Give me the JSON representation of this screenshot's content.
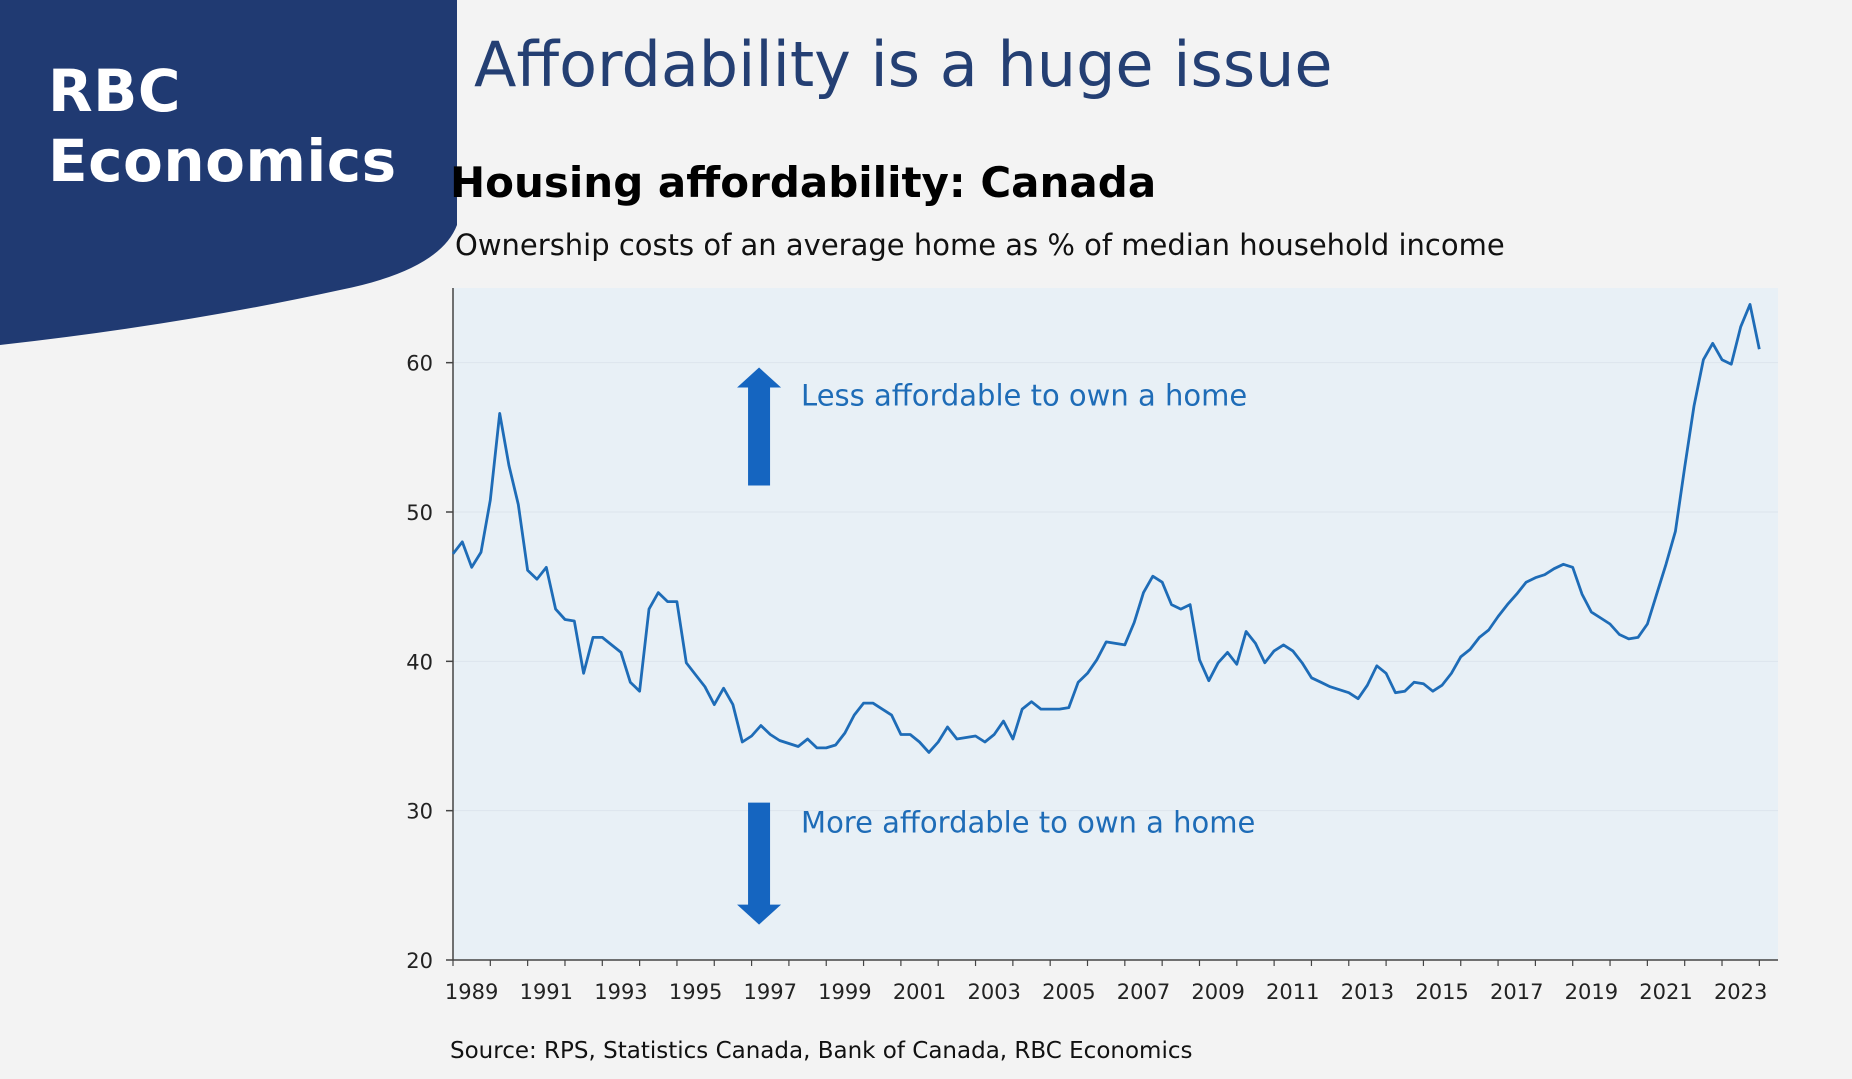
{
  "logo": {
    "line1": "RBC",
    "line2": "Economics"
  },
  "slide_title": "Affordability is a huge issue",
  "source": "Source: RPS, Statistics Canada, Bank of Canada, RBC Economics",
  "colors": {
    "logo_bg": "#203a72",
    "plot_bg": "#e8f0f6",
    "line": "#1e6cb7",
    "arrow": "#1565c0",
    "title": "#243f73"
  },
  "chart_data": {
    "type": "line",
    "title": "Housing affordability: Canada",
    "subtitle": "Ownership costs of an average home as % of median household income",
    "xlabel": "",
    "ylabel": "",
    "xlim": [
      1989,
      2024.5
    ],
    "ylim": [
      20,
      65
    ],
    "yticks": [
      20,
      30,
      40,
      50,
      60
    ],
    "xticks": [
      "1989",
      "1991",
      "1993",
      "1995",
      "1997",
      "1999",
      "2001",
      "2003",
      "2005",
      "2007",
      "2009",
      "2011",
      "2013",
      "2015",
      "2017",
      "2019",
      "2021",
      "2023"
    ],
    "annotations": [
      {
        "text": "Less affordable to own a home",
        "direction": "up",
        "anchor_x": 1997.2,
        "anchor_y": 57.8
      },
      {
        "text": "More affordable to own a home",
        "direction": "down",
        "anchor_x": 1997.2,
        "anchor_y": 29.2
      }
    ],
    "series": [
      {
        "name": "Housing affordability: Canada",
        "x": [
          1989.0,
          1989.25,
          1989.5,
          1989.75,
          1990.0,
          1990.25,
          1990.5,
          1990.75,
          1991.0,
          1991.25,
          1991.5,
          1991.75,
          1992.0,
          1992.25,
          1992.5,
          1992.75,
          1993.0,
          1993.25,
          1993.5,
          1993.75,
          1994.0,
          1994.25,
          1994.5,
          1994.75,
          1995.0,
          1995.25,
          1995.5,
          1995.75,
          1996.0,
          1996.25,
          1996.5,
          1996.75,
          1997.0,
          1997.25,
          1997.5,
          1997.75,
          1998.0,
          1998.25,
          1998.5,
          1998.75,
          1999.0,
          1999.25,
          1999.5,
          1999.75,
          2000.0,
          2000.25,
          2000.5,
          2000.75,
          2001.0,
          2001.25,
          2001.5,
          2001.75,
          2002.0,
          2002.25,
          2002.5,
          2002.75,
          2003.0,
          2003.25,
          2003.5,
          2003.75,
          2004.0,
          2004.25,
          2004.5,
          2004.75,
          2005.0,
          2005.25,
          2005.5,
          2005.75,
          2006.0,
          2006.25,
          2006.5,
          2006.75,
          2007.0,
          2007.25,
          2007.5,
          2007.75,
          2008.0,
          2008.25,
          2008.5,
          2008.75,
          2009.0,
          2009.25,
          2009.5,
          2009.75,
          2010.0,
          2010.25,
          2010.5,
          2010.75,
          2011.0,
          2011.25,
          2011.5,
          2011.75,
          2012.0,
          2012.25,
          2012.5,
          2012.75,
          2013.0,
          2013.25,
          2013.5,
          2013.75,
          2014.0,
          2014.25,
          2014.5,
          2014.75,
          2015.0,
          2015.25,
          2015.5,
          2015.75,
          2016.0,
          2016.25,
          2016.5,
          2016.75,
          2017.0,
          2017.25,
          2017.5,
          2017.75,
          2018.0,
          2018.25,
          2018.5,
          2018.75,
          2019.0,
          2019.25,
          2019.5,
          2019.75,
          2020.0,
          2020.25,
          2020.5,
          2020.75,
          2021.0,
          2021.25,
          2021.5,
          2021.75,
          2022.0,
          2022.25,
          2022.5,
          2022.75,
          2023.0,
          2023.25,
          2023.5,
          2023.75,
          2024.0
        ],
        "values": [
          47.2,
          48.0,
          46.3,
          47.3,
          50.8,
          56.6,
          53.1,
          50.5,
          46.1,
          45.5,
          46.3,
          43.5,
          42.8,
          42.7,
          39.2,
          41.6,
          41.6,
          41.1,
          40.6,
          38.6,
          38.0,
          43.5,
          44.6,
          44.0,
          44.0,
          39.9,
          39.1,
          38.3,
          37.1,
          38.2,
          37.1,
          34.6,
          35.0,
          35.7,
          35.1,
          34.7,
          34.5,
          34.3,
          34.8,
          34.2,
          34.2,
          34.4,
          35.2,
          36.4,
          37.2,
          37.2,
          36.8,
          36.4,
          35.1,
          35.1,
          34.6,
          33.9,
          34.6,
          35.6,
          34.8,
          34.9,
          35.0,
          34.6,
          35.1,
          36.0,
          34.8,
          36.8,
          37.3,
          36.8,
          36.8,
          36.8,
          36.9,
          38.6,
          39.2,
          40.1,
          41.3,
          41.2,
          41.1,
          42.6,
          44.6,
          45.7,
          45.3,
          43.8,
          43.5,
          43.8,
          40.1,
          38.7,
          39.9,
          40.6,
          39.8,
          42.0,
          41.2,
          39.9,
          40.7,
          41.1,
          40.7,
          39.9,
          38.9,
          38.6,
          38.3,
          38.1,
          37.9,
          37.5,
          38.4,
          39.7,
          39.2,
          37.9,
          38.0,
          38.6,
          38.5,
          38.0,
          38.4,
          39.2,
          40.3,
          40.8,
          41.6,
          42.1,
          43.0,
          43.8,
          44.5,
          45.3,
          45.6,
          45.8,
          46.2,
          46.5,
          46.3,
          44.5,
          43.3,
          42.9,
          42.5,
          41.8,
          41.5,
          41.6,
          42.5,
          44.5,
          46.5,
          48.7,
          53.0,
          57.1,
          60.2,
          61.3,
          60.2,
          59.9,
          62.4,
          63.9,
          60.9
        ]
      }
    ]
  }
}
